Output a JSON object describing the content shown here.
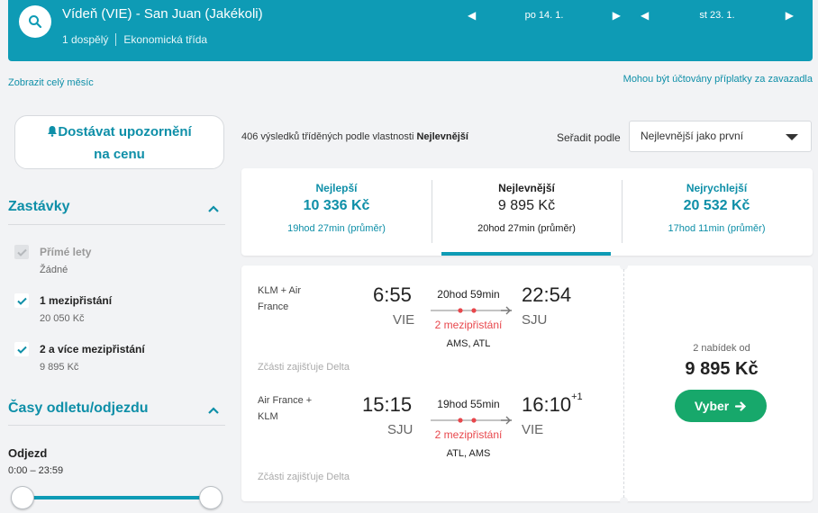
{
  "header": {
    "route": "Vídeň (VIE) - San Juan (Jakékoli)",
    "passengers": "1 dospělý",
    "cabin": "Ekonomická třída",
    "depart_date": "po 14. 1.",
    "return_date": "st 23. 1.",
    "accent": "#0e9bb5"
  },
  "links": {
    "whole_month": "Zobrazit celý měsíc",
    "baggage_fee": "Mohou být účtovány příplatky za zavazadla"
  },
  "sidebar": {
    "alert_line1": "Dostávat upozornění",
    "alert_line2": "na cenu",
    "stops_title": "Zastávky",
    "stops": [
      {
        "label": "Přímé lety",
        "sub": "Žádné",
        "checked": true,
        "disabled": true
      },
      {
        "label": "1 mezipřistání",
        "sub": "20 050 Kč",
        "checked": true,
        "disabled": false
      },
      {
        "label": "2 a více mezipřistání",
        "sub": "9 895 Kč",
        "checked": true,
        "disabled": false
      }
    ],
    "times_title": "Časy odletu/odjezdu",
    "depart_label": "Odjezd",
    "depart_range": "0:00 – 23:59"
  },
  "results": {
    "count_text": "406 výsledků tříděných podle vlastnosti",
    "sort_key": "Nejlevnější",
    "sort_by_label": "Seřadit podle",
    "sort_value": "Nejlevnější jako první"
  },
  "tabs": [
    {
      "name": "Nejlepší",
      "price": "10 336 Kč",
      "time": "19hod 27min (průměr)",
      "active": false
    },
    {
      "name": "Nejlevnější",
      "price": "9 895 Kč",
      "time": "20hod 27min (průměr)",
      "active": true
    },
    {
      "name": "Nejrychlejší",
      "price": "20 532 Kč",
      "time": "17hod 11min (průměr)",
      "active": false
    }
  ],
  "card": {
    "outbound": {
      "airline": "KLM + Air France",
      "dep_time": "6:55",
      "dep_code": "VIE",
      "duration": "20hod 59min",
      "stops": "2 mezipřistání",
      "via": "AMS, ATL",
      "arr_time": "22:54",
      "arr_code": "SJU",
      "arr_plus": "",
      "operated": "Zčásti zajišťuje Delta"
    },
    "inbound": {
      "airline": "Air France + KLM",
      "dep_time": "15:15",
      "dep_code": "SJU",
      "duration": "19hod 55min",
      "stops": "2 mezipřistání",
      "via": "ATL, AMS",
      "arr_time": "16:10",
      "arr_code": "VIE",
      "arr_plus": "+1",
      "operated": "Zčásti zajišťuje Delta"
    },
    "offers": "2 nabídek od",
    "price": "9 895 Kč",
    "select_label": "Vyber",
    "select_color": "#17a86b"
  }
}
